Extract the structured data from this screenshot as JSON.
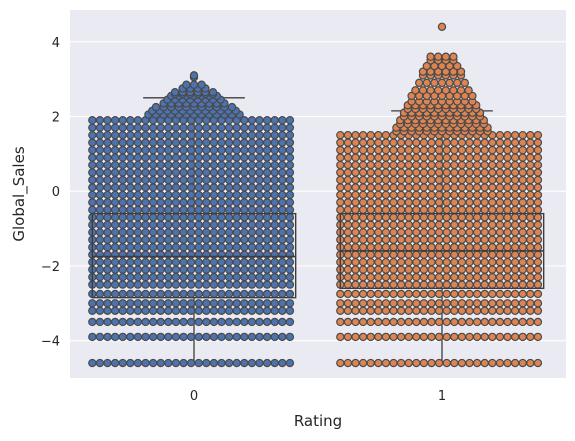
{
  "chart_data": {
    "type": "box",
    "overlay": "swarm",
    "title": "",
    "xlabel": "Rating",
    "ylabel": "Global_Sales",
    "categories": [
      "0",
      "1"
    ],
    "ylim": [
      -5.0,
      4.85
    ],
    "yticks": [
      4,
      2,
      0,
      -2,
      -4
    ],
    "ytick_labels": [
      "4",
      "2",
      "0",
      "−2",
      "−4"
    ],
    "grid": true,
    "series": [
      {
        "category": "0",
        "color": "#4c72b0",
        "box": {
          "whisker_low": -4.6,
          "q1": -2.85,
          "median": -1.75,
          "q3": -0.6,
          "whisker_high": 2.5
        },
        "swarm_levels": [
          -4.6,
          -3.9,
          -3.5,
          -3.2,
          -3.0,
          -2.75,
          -2.5,
          -2.3,
          -2.1,
          -1.9,
          -1.7,
          -1.5,
          -1.3,
          -1.1,
          -0.9,
          -0.7,
          -0.5,
          -0.3,
          -0.1,
          0.1,
          0.3,
          0.5,
          0.7,
          0.9,
          1.1,
          1.3,
          1.5,
          1.7,
          1.9
        ],
        "outliers": [
          2.05,
          2.15,
          2.25,
          2.35,
          2.45,
          2.55,
          2.6,
          2.65,
          2.75,
          2.85,
          3.05,
          3.1
        ]
      },
      {
        "category": "1",
        "color": "#dd8452",
        "box": {
          "whisker_low": -4.6,
          "q1": -2.6,
          "median": -1.6,
          "q3": -0.6,
          "whisker_high": 2.15
        },
        "swarm_levels": [
          -4.6,
          -3.9,
          -3.5,
          -3.2,
          -3.0,
          -2.75,
          -2.5,
          -2.3,
          -2.1,
          -1.9,
          -1.7,
          -1.5,
          -1.3,
          -1.1,
          -0.9,
          -0.7,
          -0.5,
          -0.3,
          -0.1,
          0.1,
          0.3,
          0.5,
          0.7,
          0.9,
          1.1,
          1.3,
          1.5
        ],
        "outliers": [
          1.6,
          1.7,
          1.8,
          1.9,
          2.0,
          2.1,
          2.2,
          2.3,
          2.4,
          2.55,
          2.7,
          2.9,
          3.1,
          3.2,
          3.35,
          3.5,
          3.6,
          4.4
        ]
      }
    ],
    "style": {
      "plot_background": "#eaeaf2",
      "grid_color": "#ffffff",
      "marker_edge": "#4a4a4a",
      "whisker_color": "#3d3d3d"
    }
  }
}
